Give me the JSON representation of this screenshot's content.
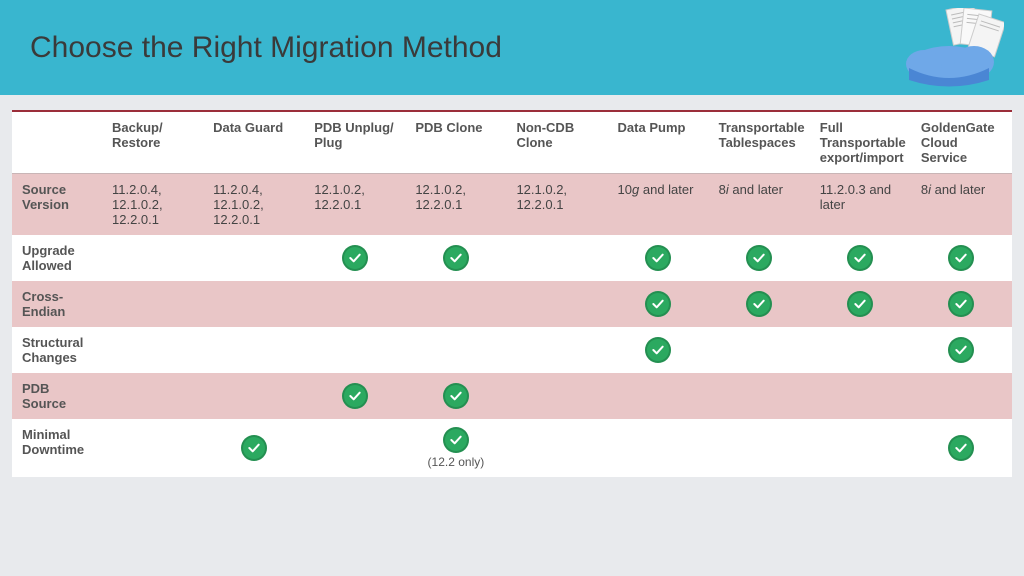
{
  "header": {
    "title": "Choose the Right Migration Method",
    "bg_color": "#39b6cf",
    "title_color": "#3a3a3a"
  },
  "table": {
    "pink_color": "#e9c6c7",
    "check_color": "#2ba960",
    "border_top_color": "#9b2e3a",
    "columns": [
      "",
      "Backup/ Restore",
      "Data Guard",
      "PDB Unplug/ Plug",
      "PDB Clone",
      "Non-CDB Clone",
      "Data Pump",
      "Transportable Tablespaces",
      "Full Transportable export/import",
      "GoldenGate Cloud Service"
    ],
    "rows": [
      {
        "label": "Source Version",
        "bg": "pink",
        "cells": [
          "11.2.0.4, 12.1.0.2, 12.2.0.1",
          "11.2.0.4, 12.1.0.2, 12.2.0.1",
          "12.1.0.2, 12.2.0.1",
          "12.1.0.2, 12.2.0.1",
          "12.1.0.2, 12.2.0.1",
          "10g and later",
          "8i and later",
          "11.2.0.3 and later",
          "8i and later"
        ],
        "checks": [
          false,
          false,
          false,
          false,
          false,
          false,
          false,
          false,
          false
        ]
      },
      {
        "label": "Upgrade Allowed",
        "bg": "white",
        "cells": [
          "",
          "",
          "",
          "",
          "",
          "",
          "",
          "",
          ""
        ],
        "checks": [
          false,
          false,
          true,
          true,
          false,
          true,
          true,
          true,
          true
        ]
      },
      {
        "label": "Cross-Endian",
        "bg": "pink",
        "cells": [
          "",
          "",
          "",
          "",
          "",
          "",
          "",
          "",
          ""
        ],
        "checks": [
          false,
          false,
          false,
          false,
          false,
          true,
          true,
          true,
          true
        ]
      },
      {
        "label": "Structural Changes",
        "bg": "white",
        "cells": [
          "",
          "",
          "",
          "",
          "",
          "",
          "",
          "",
          ""
        ],
        "checks": [
          false,
          false,
          false,
          false,
          false,
          true,
          false,
          false,
          true
        ]
      },
      {
        "label": "PDB Source",
        "bg": "pink",
        "cells": [
          "",
          "",
          "",
          "",
          "",
          "",
          "",
          "",
          ""
        ],
        "checks": [
          false,
          false,
          true,
          true,
          false,
          false,
          false,
          false,
          false
        ]
      },
      {
        "label": "Minimal Downtime",
        "bg": "white",
        "cells": [
          "",
          "",
          "",
          "",
          "",
          "",
          "",
          "",
          ""
        ],
        "checks": [
          false,
          true,
          false,
          true,
          false,
          false,
          false,
          false,
          true
        ],
        "notes": [
          "",
          "",
          "",
          "(12.2 only)",
          "",
          "",
          "",
          "",
          ""
        ]
      }
    ]
  }
}
